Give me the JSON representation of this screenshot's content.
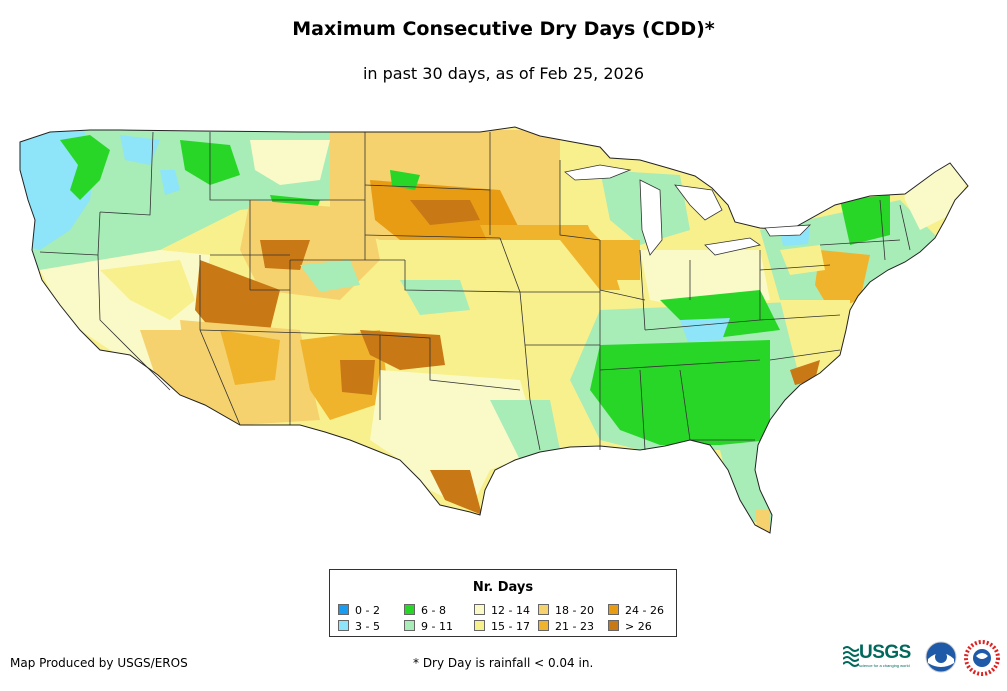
{
  "title": "Maximum Consecutive Dry Days (CDD)*",
  "subtitle": "in past 30 days, as of Feb 25, 2026",
  "legend": {
    "title": "Nr. Days",
    "items": [
      {
        "label": "0 - 2",
        "color": "#1a9bf0"
      },
      {
        "label": "3 - 5",
        "color": "#8ee4f8"
      },
      {
        "label": "6 - 8",
        "color": "#28d628"
      },
      {
        "label": "9 - 11",
        "color": "#a8ecb8"
      },
      {
        "label": "12 - 14",
        "color": "#fafac8"
      },
      {
        "label": "15 - 17",
        "color": "#f8f08c"
      },
      {
        "label": "18 - 20",
        "color": "#f6d26e"
      },
      {
        "label": "21 - 23",
        "color": "#f0b42c"
      },
      {
        "label": "24 - 26",
        "color": "#e89c14"
      },
      {
        "label": "> 26",
        "color": "#c87814"
      }
    ]
  },
  "footer": {
    "producer": "Map Produced by USGS/EROS",
    "note": "* Dry Day is rainfall < 0.04 in."
  },
  "logos": {
    "usgs": "USGS",
    "usgs_tagline": "science for a changing world",
    "noaa": "noaa-logo",
    "nws": "nws-logo"
  },
  "map": {
    "region": "Contiguous United States",
    "regions": [
      {
        "name": "pacific-northwest-coast",
        "color": "#8ee4f8"
      },
      {
        "name": "washington-cascades",
        "color": "#28d628"
      },
      {
        "name": "northern-rockies",
        "color": "#a8ecb8"
      },
      {
        "name": "northern-plains",
        "color": "#f6d26e"
      },
      {
        "name": "nebraska-south-dakota-core",
        "color": "#e89c14"
      },
      {
        "name": "iowa",
        "color": "#f0b42c"
      },
      {
        "name": "central-plains",
        "color": "#f8f08c"
      },
      {
        "name": "great-basin",
        "color": "#fafac8"
      },
      {
        "name": "utah-colorado-core",
        "color": "#c87814"
      },
      {
        "name": "southwest-arizona",
        "color": "#f6d26e"
      },
      {
        "name": "texas-panhandle",
        "color": "#c87814"
      },
      {
        "name": "south-texas",
        "color": "#c87814"
      },
      {
        "name": "gulf-coast",
        "color": "#a8ecb8"
      },
      {
        "name": "southeast",
        "color": "#28d628"
      },
      {
        "name": "tennessee-valley",
        "color": "#8ee4f8"
      },
      {
        "name": "mid-atlantic",
        "color": "#f0b42c"
      },
      {
        "name": "northeast",
        "color": "#a8ecb8"
      },
      {
        "name": "maine",
        "color": "#fafac8"
      },
      {
        "name": "great-lakes",
        "color": "#a8ecb8"
      }
    ]
  }
}
